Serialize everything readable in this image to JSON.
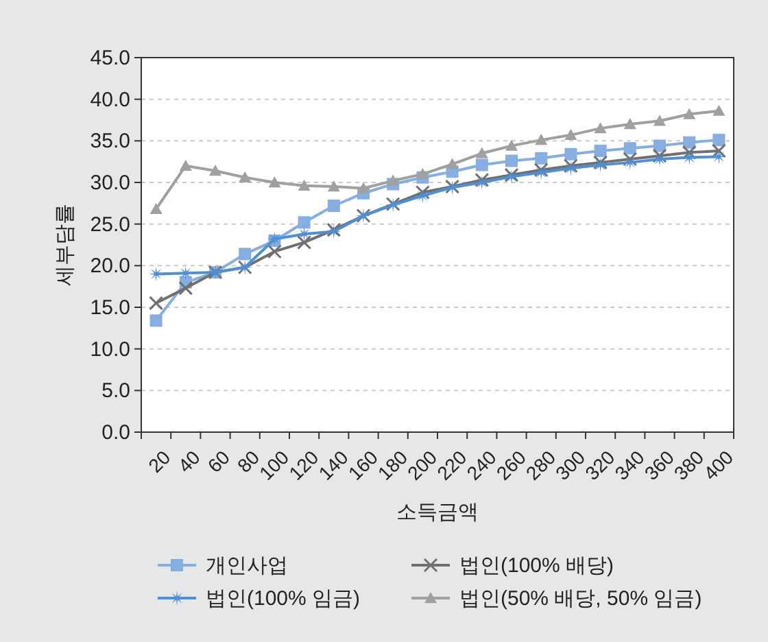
{
  "chart_data": {
    "type": "line",
    "xlabel": "소득금액",
    "ylabel": "세부담률",
    "categories": [
      "20",
      "40",
      "60",
      "80",
      "100",
      "120",
      "140",
      "160",
      "180",
      "200",
      "220",
      "240",
      "260",
      "280",
      "300",
      "320",
      "340",
      "360",
      "380",
      "400"
    ],
    "ylim": [
      0,
      45
    ],
    "yticks": [
      {
        "value": 0,
        "label": "0.0"
      },
      {
        "value": 5,
        "label": "5.0"
      },
      {
        "value": 10,
        "label": "10.0"
      },
      {
        "value": 15,
        "label": "15.0"
      },
      {
        "value": 20,
        "label": "20.0"
      },
      {
        "value": 25,
        "label": "25.0"
      },
      {
        "value": 30,
        "label": "30.0"
      },
      {
        "value": 35,
        "label": "35.0"
      },
      {
        "value": 40,
        "label": "40.0"
      },
      {
        "value": 45,
        "label": "45.0"
      }
    ],
    "grid": "y",
    "legend": "bottom",
    "line_style": "solid",
    "series": [
      {
        "name": "개인사업",
        "color": "#86aee0",
        "marker": "square",
        "values": [
          13.4,
          18.0,
          19.2,
          21.4,
          23.0,
          25.2,
          27.2,
          28.7,
          29.8,
          30.6,
          31.3,
          32.1,
          32.6,
          32.9,
          33.4,
          33.8,
          34.1,
          34.4,
          34.8,
          35.1
        ]
      },
      {
        "name": "법인(100% 배당)",
        "color": "#707070",
        "marker": "cross",
        "values": [
          15.5,
          17.3,
          19.2,
          19.8,
          21.7,
          22.8,
          24.3,
          26.0,
          27.4,
          28.8,
          29.5,
          30.3,
          30.9,
          31.5,
          32.0,
          32.4,
          32.8,
          33.2,
          33.6,
          33.8
        ]
      },
      {
        "name": "법인(100% 임금)",
        "color": "#4f8fd3",
        "marker": "star",
        "values": [
          19.0,
          19.1,
          19.2,
          19.8,
          23.2,
          23.8,
          24.1,
          26.0,
          27.3,
          28.4,
          29.4,
          30.0,
          30.7,
          31.2,
          31.7,
          32.1,
          32.4,
          32.8,
          33.0,
          33.1
        ]
      },
      {
        "name": "법인(50% 배당, 50% 임금)",
        "color": "#a0a0a0",
        "marker": "triangle",
        "values": [
          26.8,
          32.0,
          31.4,
          30.6,
          30.0,
          29.6,
          29.5,
          29.3,
          30.2,
          31.0,
          32.2,
          33.5,
          34.4,
          35.1,
          35.7,
          36.5,
          37.0,
          37.4,
          38.2,
          38.6
        ]
      }
    ]
  }
}
